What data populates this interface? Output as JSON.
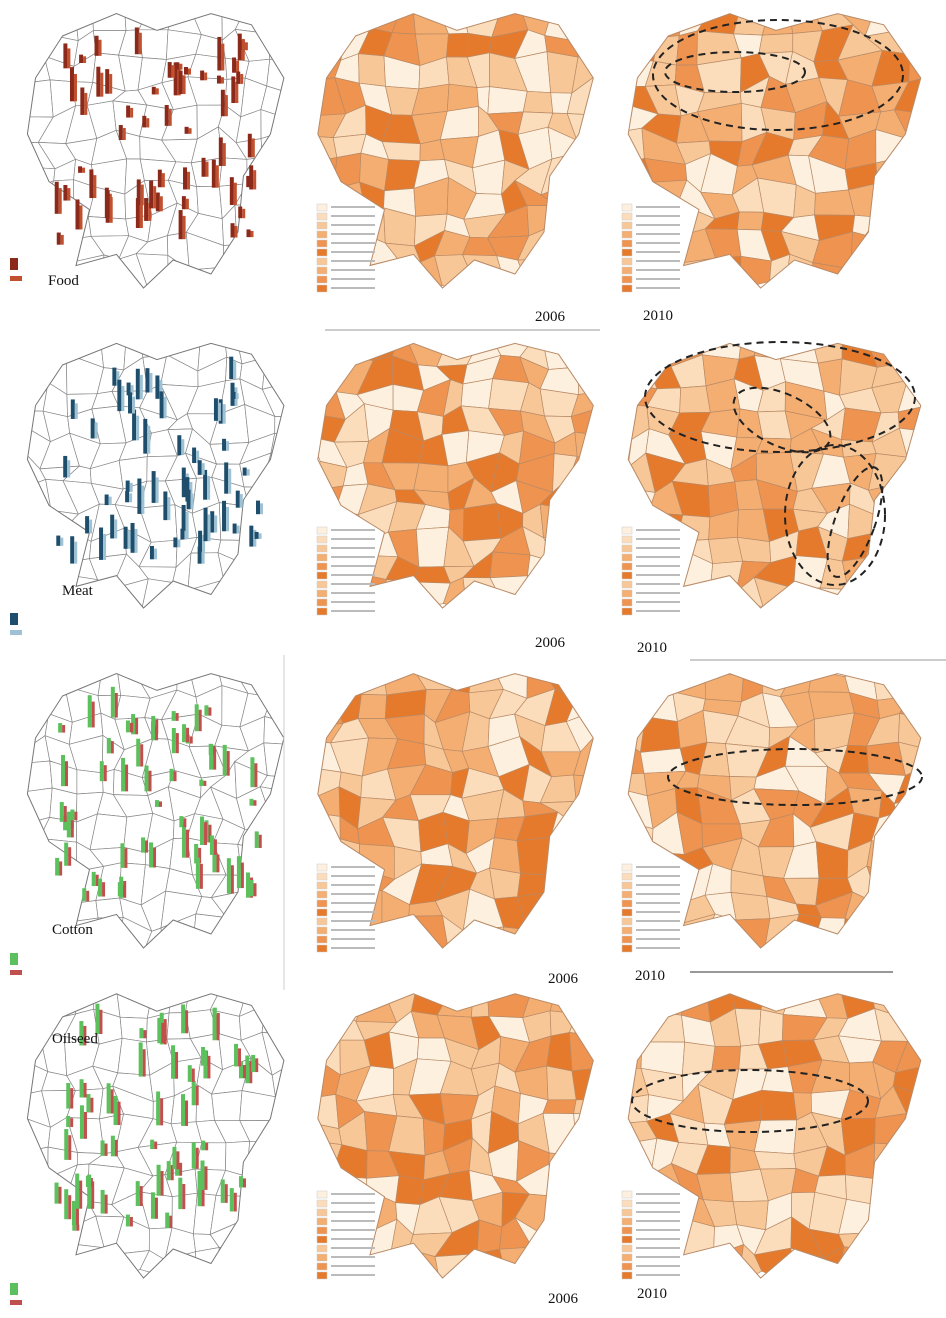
{
  "panels": [
    {
      "label": "Food",
      "year_a": "2006",
      "year_b": "2010"
    },
    {
      "label": "Meat",
      "year_a": "2006",
      "year_b": "2010"
    },
    {
      "label": "Cotton",
      "year_a": "2006",
      "year_b": "2010"
    },
    {
      "label": "Oilseed",
      "year_a": "2006",
      "year_b": "2010"
    }
  ]
}
